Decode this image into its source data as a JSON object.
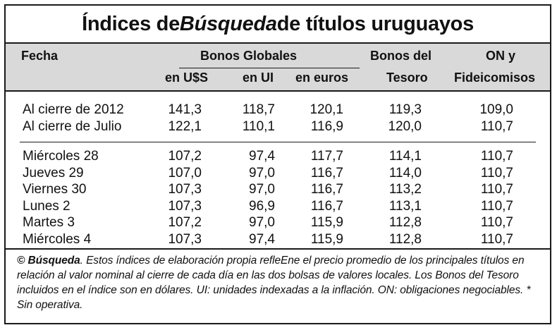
{
  "chart_data": {
    "type": "table",
    "title_parts": {
      "before": "Índices de ",
      "italic": "Búsqueda",
      "after": " de títulos uruguayos"
    },
    "header": {
      "fecha": "Fecha",
      "bonos_globales": "Bonos Globales",
      "en_usd": "en U$S",
      "en_ui": "en UI",
      "en_euros": "en euros",
      "bonos_tesoro_1": "Bonos del",
      "bonos_tesoro_2": "Tesoro",
      "on_1": "ON y",
      "on_2": "Fideicomisos"
    },
    "columns": [
      "Fecha",
      "Bonos Globales en U$S",
      "Bonos Globales en UI",
      "Bonos Globales en euros",
      "Bonos del Tesoro",
      "ON y Fideicomisos"
    ],
    "rows": [
      [
        "Al cierre de 2012",
        "141,3",
        "118,7",
        "120,1",
        "119,3",
        "109,0"
      ],
      [
        "Al cierre de Julio",
        "122,1",
        "110,1",
        "116,9",
        "120,0",
        "110,7"
      ],
      [
        "Miércoles 28",
        "107,2",
        "97,4",
        "117,7",
        "114,1",
        "110,7"
      ],
      [
        "Jueves 29",
        "107,0",
        "97,0",
        "116,7",
        "114,0",
        "110,7"
      ],
      [
        "Viernes 30",
        "107,3",
        "97,0",
        "116,7",
        "113,2",
        "110,7"
      ],
      [
        "Lunes 2",
        "107,3",
        "96,9",
        "116,7",
        "113,1",
        "110,7"
      ],
      [
        "Martes 3",
        "107,2",
        "97,0",
        "115,9",
        "112,8",
        "110,7"
      ],
      [
        "Miércoles 4",
        "107,3",
        "97,4",
        "115,9",
        "112,8",
        "110,7"
      ]
    ]
  },
  "footer": {
    "copyright": "© Búsqueda",
    "text": ". Estos índices de elaboración propia refleEne el precio promedio de los principales títulos en relación al valor nominal al cierre de cada día en las dos bolsas de valores locales. Los Bonos del Tesoro incluidos en el índice son en dólares. UI: unidades indexadas a la inflación. ON: obligaciones negociables. * Sin operativa."
  }
}
